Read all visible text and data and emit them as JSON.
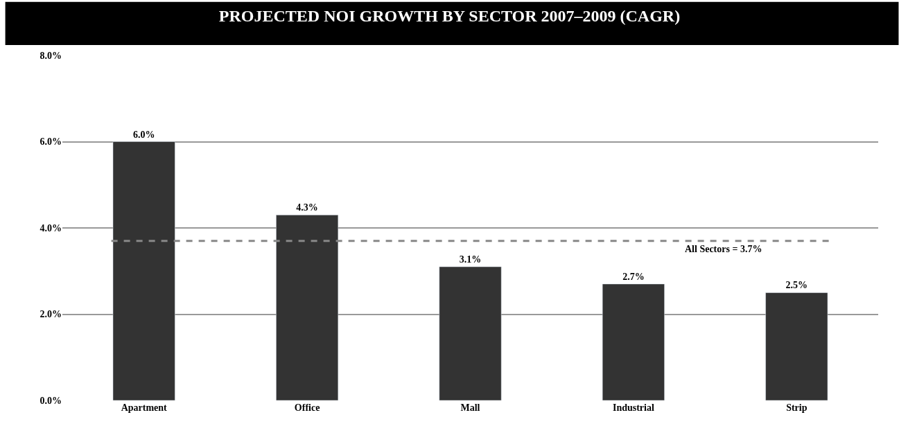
{
  "chart_data": {
    "type": "bar",
    "title": "PROJECTED NOI GROWTH BY SECTOR 2007–2009 (CAGR)",
    "categories": [
      "Apartment",
      "Office",
      "Mall",
      "Industrial",
      "Strip"
    ],
    "values": [
      6.0,
      4.3,
      3.1,
      2.7,
      2.5
    ],
    "value_labels": [
      "6.0%",
      "4.3%",
      "3.1%",
      "2.7%",
      "2.5%"
    ],
    "color": "#333333",
    "ylim": [
      0,
      8
    ],
    "yticks": [
      {
        "value": 0,
        "label": "0.0%"
      },
      {
        "value": 2,
        "label": "2.0%"
      },
      {
        "value": 4,
        "label": "4.0%"
      },
      {
        "value": 6,
        "label": "6.0%"
      },
      {
        "value": 8,
        "label": "8.0%"
      }
    ],
    "grid": "y",
    "ref_lines": [
      {
        "axis": "y",
        "value": 3.7,
        "label": "All Sectors = 3.7%",
        "color": "#888888",
        "line_style": "dashed"
      }
    ]
  }
}
